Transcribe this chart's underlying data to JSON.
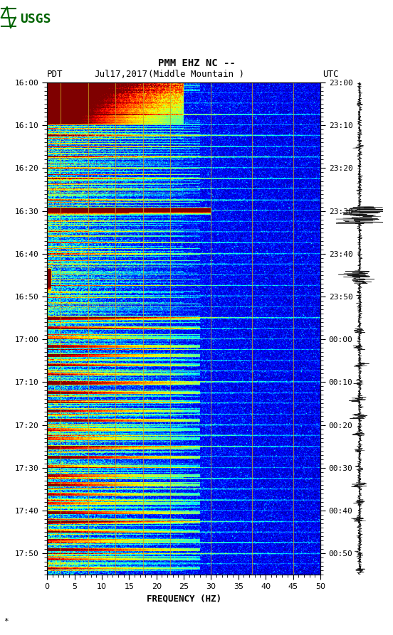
{
  "title_line1": "PMM EHZ NC --",
  "title_line2": "(Middle Mountain )",
  "left_label": "PDT",
  "date_label": "Jul17,2017",
  "right_label": "UTC",
  "freq_label": "FREQUENCY (HZ)",
  "freq_min": 0,
  "freq_max": 50,
  "freq_ticks": [
    0,
    5,
    10,
    15,
    20,
    25,
    30,
    35,
    40,
    45,
    50
  ],
  "left_yticks": [
    "16:00",
    "16:10",
    "16:20",
    "16:30",
    "16:40",
    "16:50",
    "17:00",
    "17:10",
    "17:20",
    "17:30",
    "17:40",
    "17:50"
  ],
  "right_yticks": [
    "23:00",
    "23:10",
    "23:20",
    "23:30",
    "23:40",
    "23:50",
    "00:00",
    "00:10",
    "00:20",
    "00:30",
    "00:40",
    "00:50"
  ],
  "ytick_positions": [
    0,
    10,
    20,
    30,
    40,
    50,
    60,
    70,
    80,
    90,
    100,
    110
  ],
  "time_minutes": 115,
  "vertical_lines_freq": [
    2.5,
    7.5,
    12.5,
    17.5,
    22.5,
    30,
    37.5,
    45
  ],
  "vline_color": "#C8A020",
  "usgs_green": "#006400",
  "figure_bg": "#ffffff",
  "font_family": "monospace"
}
